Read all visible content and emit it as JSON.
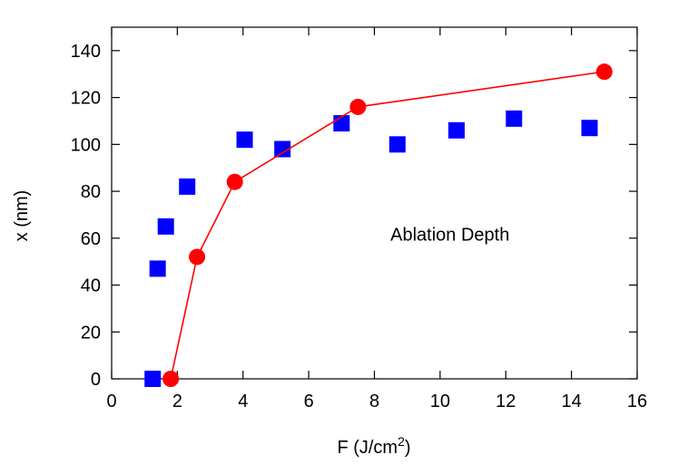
{
  "chart_data": {
    "type": "scatter",
    "title": "",
    "xlabel": "F (J/cm",
    "xlabel_sup": "2",
    "xlabel_suffix": ")",
    "ylabel": "x (nm)",
    "xlim": [
      0,
      16
    ],
    "ylim": [
      0,
      150
    ],
    "grid": false,
    "x_ticks": [
      0,
      2,
      4,
      6,
      8,
      10,
      12,
      14,
      16
    ],
    "y_ticks": [
      0,
      20,
      40,
      60,
      80,
      100,
      120,
      140
    ],
    "annotation": {
      "text": "Ablation Depth",
      "x": 10.3,
      "y": 59
    },
    "series": [
      {
        "marker": "square",
        "color": "#0000ff",
        "line": false,
        "points": [
          {
            "x": 1.25,
            "y": 0
          },
          {
            "x": 1.4,
            "y": 47
          },
          {
            "x": 1.65,
            "y": 65
          },
          {
            "x": 2.3,
            "y": 82
          },
          {
            "x": 4.05,
            "y": 102
          },
          {
            "x": 5.2,
            "y": 98
          },
          {
            "x": 7.0,
            "y": 109
          },
          {
            "x": 8.7,
            "y": 100
          },
          {
            "x": 10.5,
            "y": 106
          },
          {
            "x": 12.25,
            "y": 111
          },
          {
            "x": 14.55,
            "y": 107
          }
        ]
      },
      {
        "marker": "circle",
        "color": "#ff0000",
        "line": true,
        "points": [
          {
            "x": 1.8,
            "y": 0
          },
          {
            "x": 2.6,
            "y": 52
          },
          {
            "x": 3.75,
            "y": 84
          },
          {
            "x": 7.5,
            "y": 116
          },
          {
            "x": 15.0,
            "y": 131
          }
        ]
      }
    ]
  }
}
